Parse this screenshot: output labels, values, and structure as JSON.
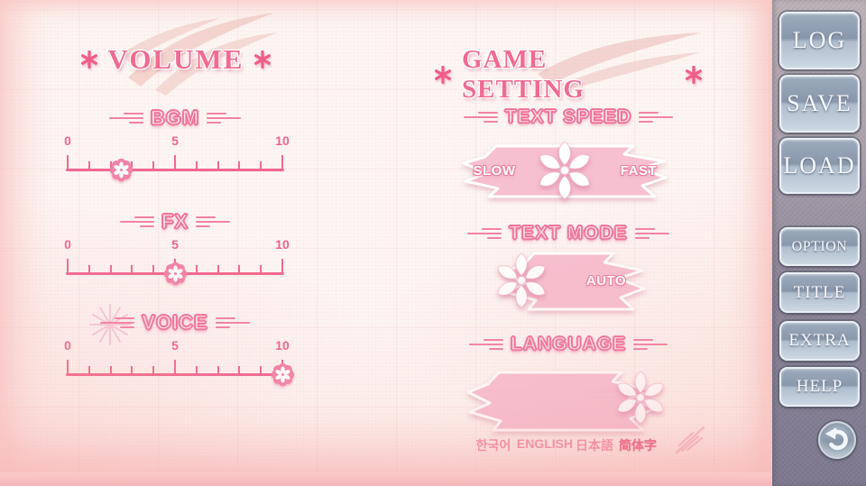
{
  "volume": {
    "title": "VOLUME",
    "sliders": [
      {
        "label": "BGM",
        "value": 2.5,
        "min": 0,
        "max": 10,
        "ticks": [
          "0",
          "5",
          "10"
        ]
      },
      {
        "label": "FX",
        "value": 5,
        "min": 0,
        "max": 10,
        "ticks": [
          "0",
          "5",
          "10"
        ]
      },
      {
        "label": "VOICE",
        "value": 10,
        "min": 0,
        "max": 10,
        "ticks": [
          "0",
          "5",
          "10"
        ]
      }
    ]
  },
  "game_setting": {
    "title": "GAME SETTING",
    "text_speed": {
      "label": "TEXT SPEED",
      "min_label": "SLOW",
      "max_label": "FAST"
    },
    "text_mode": {
      "label": "TEXT MODE",
      "mode_label": "AUTO"
    },
    "language": {
      "label": "LANGUAGE",
      "options": [
        {
          "label": "한국어",
          "selected": false
        },
        {
          "label": "ENGLISH",
          "selected": false
        },
        {
          "label": "日本語",
          "selected": false
        },
        {
          "label": "简体字",
          "selected": true
        }
      ]
    }
  },
  "sidebar": {
    "buttons_top": [
      {
        "label": "LOG"
      },
      {
        "label": "SAVE"
      },
      {
        "label": "LOAD"
      }
    ],
    "buttons_bottom": [
      {
        "label": "OPTION"
      },
      {
        "label": "TITLE"
      },
      {
        "label": "EXTRA"
      },
      {
        "label": "HELP"
      }
    ],
    "back_button": {
      "icon": "undo-arrow"
    }
  },
  "colors": {
    "accent_pink": "#f2688e",
    "label_pink": "#ef6f97",
    "banner_pink": "#f6c0d0",
    "button_face": "#a9b8c8",
    "sidebar_top": "#bcb3b8",
    "sidebar_bottom": "#7e7990"
  }
}
